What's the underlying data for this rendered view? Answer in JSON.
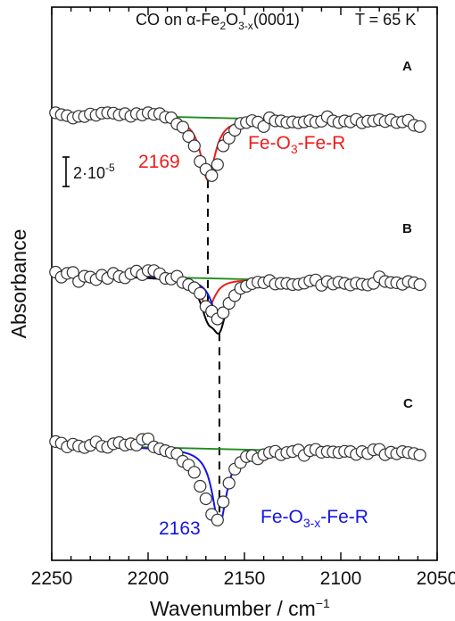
{
  "chart_data": {
    "type": "scatter",
    "title": "CO on α-Fe2O3-x(0001)",
    "title_parts": {
      "prefix": "CO on α-Fe",
      "sub1": "2",
      "mid": "O",
      "sub2": "3-x",
      "suffix": "(0001)"
    },
    "temperature_label": "T = 65 K",
    "xlabel": "Wavenumber / cm",
    "xlabel_sup": "−1",
    "ylabel": "Absorbance",
    "xlim": [
      2250,
      2050
    ],
    "x_reversed": true,
    "xticks": [
      2250,
      2200,
      2150,
      2100,
      2050
    ],
    "grid": false,
    "scale_bar": {
      "mantissa": "2·10",
      "exponent": "-5",
      "value": 2e-05
    },
    "colors": {
      "experimental_points": "#333333",
      "baseline": "#1e8c1e",
      "fe_o3_component": "#ee1c1c",
      "fe_o3x_component": "#1515e8",
      "sum_fit": "#000000"
    },
    "dashed_line_positions": [
      2169,
      2163
    ],
    "peak_annotations": [
      {
        "value": "2169",
        "label": "Fe-O",
        "label_sub": "3",
        "label_suffix": "-Fe-R",
        "color": "#ee1c1c"
      },
      {
        "value": "2163",
        "label": "Fe-O",
        "label_sub": "3-x",
        "label_suffix": "-Fe-R",
        "color": "#1515e8"
      }
    ],
    "panels": [
      {
        "label": "A",
        "baseline": {
          "x": [
            2250,
            2058
          ],
          "y": [
            9.2,
            6.4
          ]
        },
        "components": [
          {
            "peak_position": 2169,
            "depth": 20.0,
            "fwhm": 9,
            "color": "#ee1c1c"
          }
        ],
        "points": {
          "x": [
            2248,
            2245,
            2242,
            2239,
            2236,
            2233,
            2230,
            2227,
            2224,
            2221,
            2218,
            2215,
            2212,
            2209,
            2206,
            2203,
            2200,
            2197,
            2194,
            2191,
            2188,
            2185,
            2182,
            2179,
            2176,
            2173,
            2170,
            2167,
            2164,
            2161,
            2158,
            2155,
            2152,
            2149,
            2146,
            2143,
            2140,
            2137,
            2134,
            2131,
            2128,
            2125,
            2122,
            2119,
            2116,
            2113,
            2110,
            2107,
            2104,
            2101,
            2098,
            2095,
            2092,
            2089,
            2086,
            2083,
            2080,
            2077,
            2074,
            2071,
            2068,
            2065,
            2062,
            2059
          ],
          "y": [
            9.6,
            9.0,
            8.7,
            7.9,
            8.5,
            8.4,
            9.2,
            8.8,
            9.5,
            9.6,
            9.5,
            8.9,
            9.3,
            8.5,
            9.3,
            8.9,
            9.6,
            9.1,
            9.3,
            8.2,
            8.0,
            6.0,
            5.0,
            2.0,
            -1.0,
            -6.0,
            -8.5,
            -10.5,
            -7.0,
            -1.0,
            1.5,
            4.0,
            6.2,
            6.5,
            7.1,
            6.6,
            5.2,
            8.0,
            7.0,
            7.0,
            6.5,
            6.7,
            6.4,
            6.7,
            7.1,
            6.6,
            6.9,
            8.3,
            7.0,
            6.5,
            7.0,
            6.7,
            7.5,
            6.4,
            6.9,
            7.0,
            7.4,
            6.8,
            7.3,
            6.5,
            6.7,
            7.2,
            5.6,
            5.2
          ]
        }
      },
      {
        "label": "B",
        "baseline": {
          "x": [
            2250,
            2058
          ],
          "y": [
            9.2,
            6.4
          ]
        },
        "components": [
          {
            "peak_position": 2169,
            "depth": 9.5,
            "fwhm": 9,
            "color": "#ee1c1c"
          },
          {
            "peak_position": 2163,
            "depth": 14.0,
            "fwhm": 9,
            "color": "#1515e8"
          }
        ],
        "sum_color": "#000000",
        "points": {
          "x": [
            2248,
            2245,
            2242,
            2239,
            2236,
            2233,
            2230,
            2227,
            2224,
            2221,
            2218,
            2215,
            2212,
            2209,
            2206,
            2203,
            2200,
            2197,
            2194,
            2191,
            2188,
            2185,
            2182,
            2179,
            2176,
            2173,
            2170,
            2167,
            2164,
            2161,
            2158,
            2155,
            2152,
            2149,
            2146,
            2143,
            2140,
            2137,
            2134,
            2131,
            2128,
            2125,
            2122,
            2119,
            2116,
            2113,
            2110,
            2107,
            2104,
            2101,
            2098,
            2095,
            2092,
            2089,
            2086,
            2083,
            2080,
            2077,
            2074,
            2071,
            2068,
            2065,
            2062,
            2059
          ],
          "y": [
            10.0,
            8.4,
            9.6,
            9.9,
            7.0,
            8.7,
            8.4,
            7.6,
            9.0,
            8.0,
            9.6,
            8.6,
            8.2,
            9.5,
            10.3,
            9.2,
            10.5,
            10.5,
            9.5,
            8.0,
            7.8,
            8.7,
            6.7,
            6.0,
            5.0,
            3.2,
            -1.0,
            -2.5,
            -5.0,
            -3.0,
            0.0,
            2.5,
            4.8,
            5.5,
            6.3,
            6.8,
            6.6,
            7.3,
            6.2,
            6.4,
            6.4,
            6.0,
            6.1,
            6.5,
            7.2,
            7.5,
            5.8,
            7.0,
            6.2,
            6.8,
            6.4,
            5.9,
            6.5,
            6.1,
            5.9,
            6.4,
            8.5,
            7.0,
            6.7,
            6.6,
            6.1,
            7.0,
            6.6,
            6.0
          ]
        }
      },
      {
        "label": "C",
        "baseline": {
          "x": [
            2250,
            2058
          ],
          "y": [
            9.2,
            6.4
          ]
        },
        "components": [
          {
            "peak_position": 2163,
            "depth": 24.2,
            "fwhm": 9,
            "color": "#1515e8"
          }
        ],
        "points": {
          "x": [
            2248,
            2245,
            2242,
            2239,
            2236,
            2233,
            2230,
            2227,
            2224,
            2221,
            2218,
            2215,
            2212,
            2209,
            2206,
            2203,
            2200,
            2197,
            2194,
            2191,
            2188,
            2185,
            2182,
            2179,
            2176,
            2173,
            2170,
            2167,
            2164,
            2161,
            2158,
            2155,
            2152,
            2149,
            2146,
            2143,
            2140,
            2137,
            2134,
            2131,
            2128,
            2125,
            2122,
            2119,
            2116,
            2113,
            2110,
            2107,
            2104,
            2101,
            2098,
            2095,
            2092,
            2089,
            2086,
            2083,
            2080,
            2077,
            2074,
            2071,
            2068,
            2065,
            2062,
            2059
          ],
          "y": [
            10.3,
            9.8,
            8.6,
            9.5,
            8.9,
            8.4,
            9.1,
            10.2,
            8.8,
            8.5,
            9.6,
            10.0,
            9.2,
            9.6,
            9.2,
            11.0,
            11.2,
            8.6,
            8.0,
            7.4,
            6.8,
            6.4,
            4.0,
            2.8,
            0.5,
            -4.0,
            -8.0,
            -13.0,
            -14.8,
            -9.0,
            -3.0,
            1.5,
            3.6,
            5.5,
            5.8,
            4.8,
            6.1,
            6.8,
            7.2,
            6.1,
            6.8,
            7.1,
            7.6,
            5.9,
            7.4,
            7.8,
            6.9,
            7.1,
            7.0,
            6.8,
            7.2,
            7.1,
            6.2,
            7.1,
            6.5,
            7.7,
            7.8,
            6.1,
            6.9,
            6.4,
            7.1,
            6.8,
            6.5,
            6.0
          ]
        }
      }
    ]
  }
}
